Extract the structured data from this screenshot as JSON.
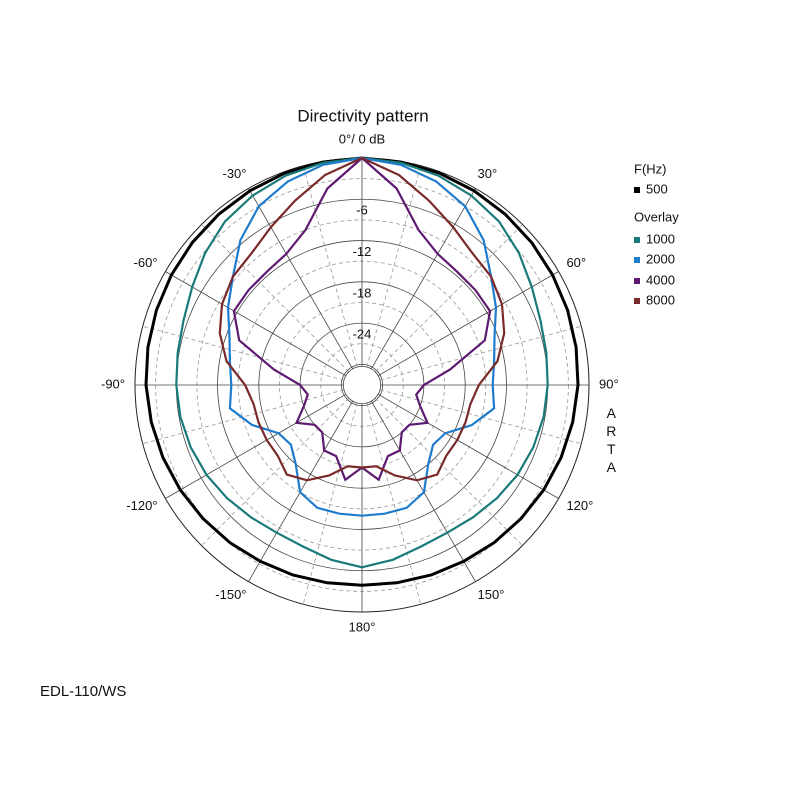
{
  "chart_data": {
    "type": "polar",
    "title": "Directivity pattern",
    "theta": [
      -180,
      -170,
      -160,
      -150,
      -140,
      -130,
      -120,
      -110,
      -100,
      -90,
      -80,
      -70,
      -60,
      -50,
      -40,
      -30,
      -20,
      -10,
      0,
      10,
      20,
      30,
      40,
      50,
      60,
      70,
      80,
      90,
      100,
      110,
      120,
      130,
      140,
      150,
      160,
      170,
      180
    ],
    "rlim": [
      -33,
      0
    ],
    "rticks": [
      -30,
      -24,
      -18,
      -12,
      -6
    ],
    "rminorticks": [
      -27,
      -21,
      -15,
      -9,
      -3
    ],
    "thetaticks": [
      {
        "value": -150,
        "label": "-150°"
      },
      {
        "value": -120,
        "label": "-120°"
      },
      {
        "value": -90,
        "label": "-90°"
      },
      {
        "value": -60,
        "label": "-60°"
      },
      {
        "value": -30,
        "label": "-30°"
      },
      {
        "value": 0,
        "label": "0°/ 0 dB"
      },
      {
        "value": 30,
        "label": "30°"
      },
      {
        "value": 60,
        "label": "60°"
      },
      {
        "value": 90,
        "label": "90°"
      },
      {
        "value": 120,
        "label": "120°"
      },
      {
        "value": 150,
        "label": "150°"
      },
      {
        "value": 180,
        "label": "180°"
      }
    ],
    "thetaminorticks": [
      -165,
      -135,
      -105,
      -75,
      -45,
      -15,
      15,
      45,
      75,
      105,
      135,
      165
    ],
    "legend_title": "F(Hz)",
    "overlay_title": "Overlay",
    "side_label": "ARTA",
    "footer": "EDL-110/WS",
    "series": [
      {
        "name": "500",
        "color": "#000000",
        "values": [
          -3.9,
          -3.8,
          -3.6,
          -3.4,
          -3.1,
          -2.8,
          -2.5,
          -2.2,
          -1.9,
          -1.6,
          -1.4,
          -1.2,
          -1.0,
          -0.8,
          -0.6,
          -0.4,
          -0.2,
          -0.1,
          0,
          -0.1,
          -0.2,
          -0.4,
          -0.6,
          -0.8,
          -1.0,
          -1.2,
          -1.4,
          -1.6,
          -1.9,
          -2.2,
          -2.5,
          -2.8,
          -3.1,
          -3.4,
          -3.6,
          -3.8,
          -3.9
        ]
      },
      {
        "name": "1000",
        "color": "#1a7a7a",
        "values": [
          -6.5,
          -7.2,
          -8.0,
          -8.2,
          -7.9,
          -7.4,
          -6.9,
          -6.5,
          -6.2,
          -6.0,
          -5.8,
          -5.4,
          -4.5,
          -3.2,
          -2.0,
          -1.2,
          -0.6,
          -0.2,
          0,
          -0.2,
          -0.6,
          -1.2,
          -2.0,
          -3.2,
          -4.5,
          -5.4,
          -5.8,
          -6.0,
          -6.2,
          -6.5,
          -6.9,
          -7.4,
          -7.9,
          -8.2,
          -8.0,
          -7.2,
          -6.5
        ]
      },
      {
        "name": "2000",
        "color": "#1f7ccc",
        "values": [
          -14.0,
          -14.0,
          -14.0,
          -15.0,
          -18.0,
          -19.5,
          -19.0,
          -16.0,
          -13.5,
          -14.0,
          -13.5,
          -12.5,
          -10.5,
          -8.5,
          -5.5,
          -3.0,
          -1.5,
          -0.5,
          0,
          -0.5,
          -1.5,
          -3.0,
          -5.5,
          -8.5,
          -10.5,
          -12.5,
          -13.5,
          -14.0,
          -13.5,
          -16.0,
          -19.0,
          -19.5,
          -18.0,
          -15.0,
          -14.0,
          -14.0,
          -14.0
        ]
      },
      {
        "name": "4000",
        "color": "#5e1a70",
        "values": [
          -21,
          -19,
          -22,
          -22,
          -24,
          -24,
          -22,
          -24,
          -25,
          -24,
          -20,
          -14,
          -11.5,
          -11.5,
          -11.5,
          -11,
          -9,
          -4,
          0,
          -4,
          -9,
          -11,
          -11.5,
          -11.5,
          -11.5,
          -14,
          -20,
          -24,
          -25,
          -24,
          -22,
          -24,
          -24,
          -22,
          -22,
          -19,
          -21
        ]
      },
      {
        "name": "8000",
        "color": "#7a2a2a",
        "values": [
          -21,
          -21,
          -19,
          -17,
          -16,
          -17,
          -17,
          -17,
          -17,
          -16,
          -13,
          -11,
          -9.5,
          -8.5,
          -8,
          -6.5,
          -4.5,
          -2,
          0,
          -2,
          -4.5,
          -6.5,
          -8,
          -8.5,
          -9.5,
          -11,
          -13,
          -16,
          -17,
          -17,
          -17,
          -17,
          -16,
          -17,
          -19,
          -21,
          -21
        ]
      }
    ]
  }
}
